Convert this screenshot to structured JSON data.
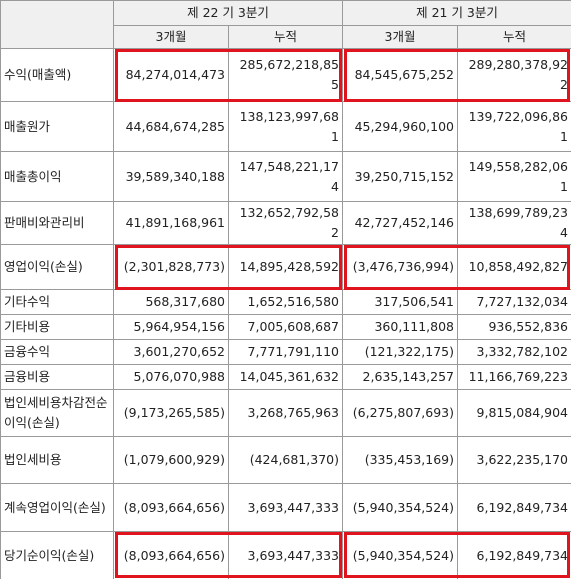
{
  "header": {
    "groups": [
      "제 22 기 3분기",
      "제 21 기 3분기"
    ],
    "subheaders": [
      "3개월",
      "누적",
      "3개월",
      "누적"
    ]
  },
  "table": {
    "rows": [
      [
        "수익(매출액)",
        "84,274,014,473",
        "285,672,218,855",
        "84,545,675,252",
        "289,280,378,922"
      ],
      [
        "매출원가",
        "44,684,674,285",
        "138,123,997,681",
        "45,294,960,100",
        "139,722,096,861"
      ],
      [
        "매출총이익",
        "39,589,340,188",
        "147,548,221,174",
        "39,250,715,152",
        "149,558,282,061"
      ],
      [
        "판매비와관리비",
        "41,891,168,961",
        "132,652,792,582",
        "42,727,452,146",
        "138,699,789,234"
      ],
      [
        "영업이익(손실)",
        "(2,301,828,773)",
        "14,895,428,592",
        "(3,476,736,994)",
        "10,858,492,827"
      ],
      [
        "기타수익",
        "568,317,680",
        "1,652,516,580",
        "317,506,541",
        "7,727,132,034"
      ],
      [
        "기타비용",
        "5,964,954,156",
        "7,005,608,687",
        "360,111,808",
        "936,552,836"
      ],
      [
        "금융수익",
        "3,601,270,652",
        "7,771,791,110",
        "(121,322,175)",
        "3,332,782,102"
      ],
      [
        "금융비용",
        "5,076,070,988",
        "14,045,361,632",
        "2,635,143,257",
        "11,166,769,223"
      ],
      [
        "법인세비용차감전순이익(손실)",
        "(9,173,265,585)",
        "3,268,765,963",
        "(6,275,807,693)",
        "9,815,084,904"
      ],
      [
        "법인세비용",
        "(1,079,600,929)",
        "(424,681,370)",
        "(335,453,169)",
        "3,622,235,170"
      ],
      [
        "계속영업이익(손실)",
        "(8,093,664,656)",
        "3,693,447,333",
        "(5,940,354,524)",
        "6,192,849,734"
      ],
      [
        "당기순이익(손실)",
        "(8,093,664,656)",
        "3,693,447,333",
        "(5,940,354,524)",
        "6,192,849,734"
      ]
    ]
  }
}
